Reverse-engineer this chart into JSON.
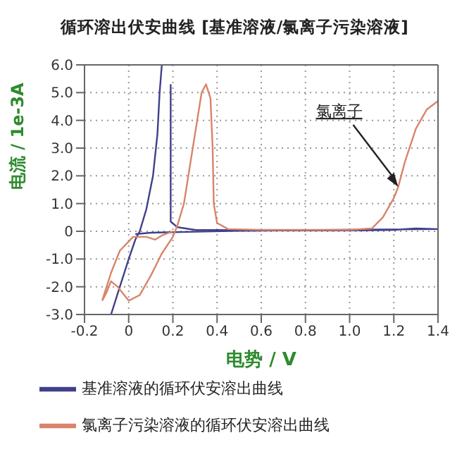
{
  "chart_data": {
    "type": "line",
    "title": "循环溶出伏安曲线 [基准溶液/氯离子污染溶液]",
    "xlabel": "电势 / V",
    "ylabel": "电流 / 1e-3A",
    "xlim": [
      -0.2,
      1.4
    ],
    "ylim": [
      -3.0,
      6.0
    ],
    "xticks": [
      {
        "value": -0.2,
        "label": "-0.2"
      },
      0,
      {
        "value": 0.2,
        "label": "0.2"
      },
      {
        "value": 0.4,
        "label": "0.4"
      },
      {
        "value": 0.6,
        "label": "0.6"
      },
      {
        "value": 0.8,
        "label": "0.8"
      },
      {
        "value": 1.0,
        "label": "1.0"
      },
      {
        "value": 1.2,
        "label": "1.2"
      },
      {
        "value": 1.4,
        "label": "1.4"
      }
    ],
    "yticks": [
      {
        "value": -3.0,
        "label": "-3.0"
      },
      {
        "value": -2.0,
        "label": "-2.0"
      },
      {
        "value": -1.0,
        "label": "-1.0"
      },
      0,
      {
        "value": 1.0,
        "label": "1.0"
      },
      {
        "value": 2.0,
        "label": "2.0"
      },
      {
        "value": 3.0,
        "label": "3.0"
      },
      {
        "value": 4.0,
        "label": "4.0"
      },
      {
        "value": 5.0,
        "label": "5.0"
      },
      {
        "value": 6.0,
        "label": "6.0"
      }
    ],
    "grid": true,
    "legend": "bottom",
    "annotations": [
      {
        "text": "氯离子",
        "x": 1.22,
        "y": 1.6
      }
    ],
    "series": [
      {
        "name": "基准溶液的循环伏安溶出曲线",
        "color": "#40408a",
        "x": [
          -0.08,
          -0.04,
          0,
          0.03,
          0.05,
          0.08,
          0.11,
          0.13,
          0.14,
          0.15,
          null,
          0.19,
          0.19,
          0.22,
          0.3,
          0.6,
          1.0,
          1.2,
          1.3,
          1.4,
          0.5,
          0.1,
          0.03
        ],
        "values": [
          -3.0,
          -2.0,
          -1.0,
          -0.3,
          0.0,
          0.8,
          2.0,
          3.5,
          5.0,
          6.0,
          null,
          5.3,
          0.35,
          0.15,
          0.05,
          0.03,
          0.03,
          0.05,
          0.1,
          0.08,
          0.02,
          -0.05,
          -0.1
        ]
      },
      {
        "name": "氯离子污染溶液的循环伏安溶出曲线",
        "color": "#d9846a",
        "x": [
          -0.12,
          -0.1,
          -0.08,
          -0.05,
          0,
          0.05,
          0.1,
          0.15,
          0.2,
          0.22,
          0.25,
          0.28,
          0.31,
          0.33,
          0.35,
          0.37,
          0.38,
          0.385,
          0.4,
          0.45,
          0.6,
          1.0,
          1.1,
          1.15,
          1.2,
          1.22,
          1.25,
          1.3,
          1.35,
          1.4,
          null,
          0.2,
          0.15,
          0.12,
          0.08,
          0.02,
          -0.04,
          -0.08,
          -0.12
        ],
        "values": [
          -2.5,
          -2.2,
          -1.8,
          -2.0,
          -2.5,
          -2.3,
          -1.6,
          -0.8,
          -0.2,
          0.2,
          1.0,
          2.5,
          4.0,
          5.0,
          5.3,
          4.8,
          3.0,
          1.0,
          0.3,
          0.08,
          0.05,
          0.05,
          0.1,
          0.5,
          1.2,
          1.6,
          2.5,
          3.7,
          4.4,
          4.7,
          null,
          0.0,
          -0.15,
          -0.3,
          -0.2,
          -0.2,
          -0.7,
          -1.5,
          -2.5
        ]
      }
    ]
  }
}
